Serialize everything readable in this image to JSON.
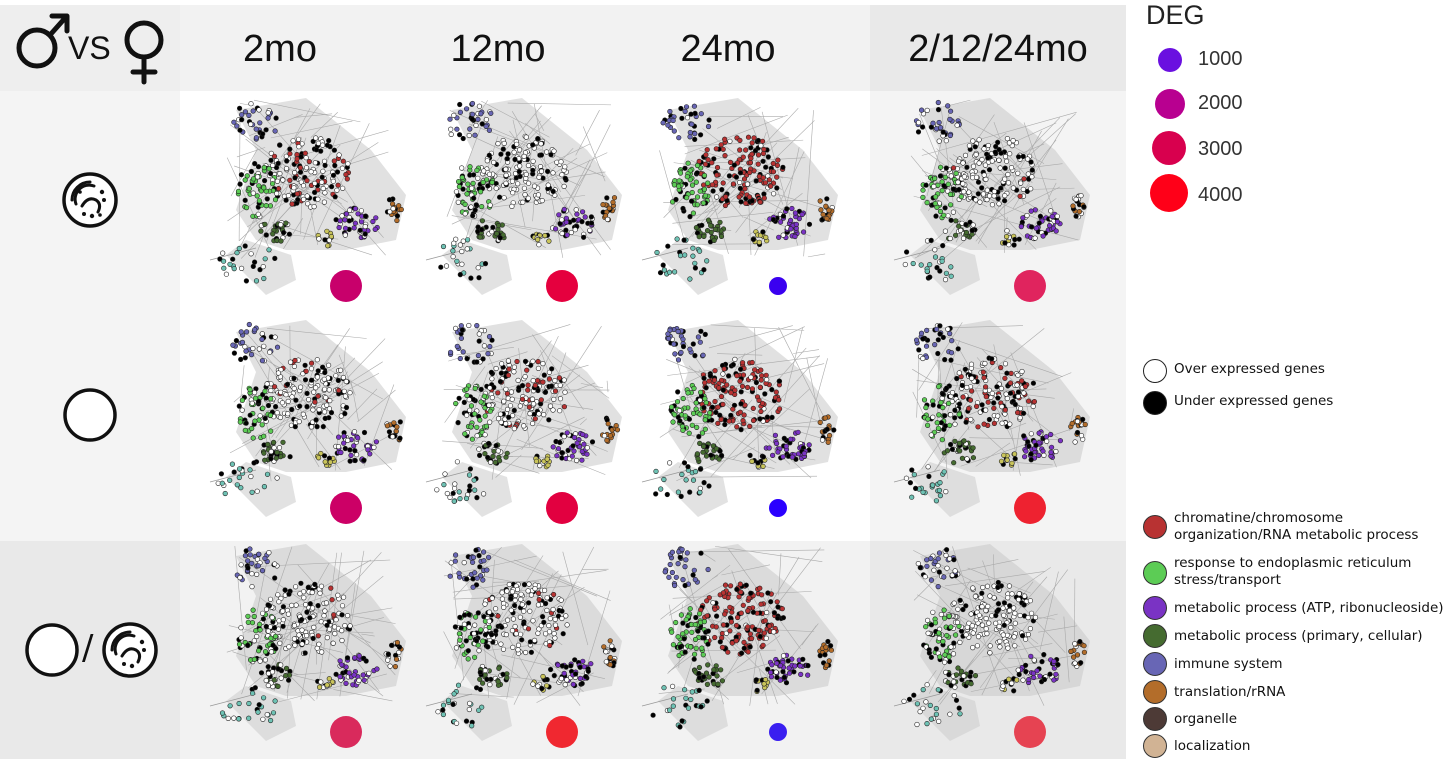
{
  "comparison": {
    "male_symbol": "♂",
    "vs": "VS",
    "female_symbol": "♀"
  },
  "columns": [
    {
      "label": "2mo"
    },
    {
      "label": "12mo"
    },
    {
      "label": "24mo"
    },
    {
      "label": "2/12/24mo"
    }
  ],
  "rows": [
    {
      "icon": "bacteria-dish-icon"
    },
    {
      "icon": "empty-dish-icon"
    },
    {
      "icon": "empty-dish-over-bacteria-dish-icon",
      "separator": "/"
    }
  ],
  "cells": [
    {
      "row": 0,
      "col": 0,
      "deg_color": "#c8006b",
      "white_fraction": 0.35
    },
    {
      "row": 0,
      "col": 1,
      "deg_color": "#e5003e",
      "white_fraction": 0.55
    },
    {
      "row": 0,
      "col": 2,
      "deg_color": "#3a00f0",
      "white_fraction": 0.05
    },
    {
      "row": 0,
      "col": 3,
      "deg_color": "#e0245e",
      "white_fraction": 0.5
    },
    {
      "row": 1,
      "col": 0,
      "deg_color": "#cc0066",
      "white_fraction": 0.45
    },
    {
      "row": 1,
      "col": 1,
      "deg_color": "#e20040",
      "white_fraction": 0.4
    },
    {
      "row": 1,
      "col": 2,
      "deg_color": "#2a00ff",
      "white_fraction": 0.05
    },
    {
      "row": 1,
      "col": 3,
      "deg_color": "#ee2230",
      "white_fraction": 0.3
    },
    {
      "row": 2,
      "col": 0,
      "deg_color": "#d92a5c",
      "white_fraction": 0.5
    },
    {
      "row": 2,
      "col": 1,
      "deg_color": "#f02830",
      "white_fraction": 0.45
    },
    {
      "row": 2,
      "col": 2,
      "deg_color": "#3a1ff0",
      "white_fraction": 0.05
    },
    {
      "row": 2,
      "col": 3,
      "deg_color": "#e64352",
      "white_fraction": 0.55
    }
  ],
  "legend": {
    "deg_title": "DEG",
    "deg_sizes": [
      {
        "label": "1000",
        "color": "#6a10e0"
      },
      {
        "label": "2000",
        "color": "#b80090"
      },
      {
        "label": "3000",
        "color": "#d8004e"
      },
      {
        "label": "4000",
        "color": "#ff0018"
      }
    ],
    "expression": [
      {
        "label": "Over expressed genes",
        "color": "#ffffff"
      },
      {
        "label": "Under expressed genes",
        "color": "#000000"
      }
    ],
    "categories": [
      {
        "lines": [
          "chromatine/chromosome",
          "organization/RNA metabolic process"
        ],
        "color": "#b83232"
      },
      {
        "lines": [
          "response to endoplasmic reticulum",
          "stress/transport"
        ],
        "color": "#5ccc55"
      },
      {
        "lines": [
          "metabolic process (ATP, ribonucleoside)"
        ],
        "color": "#7a33c4"
      },
      {
        "lines": [
          "metabolic process (primary, cellular)"
        ],
        "color": "#456b30"
      },
      {
        "lines": [
          "immune system"
        ],
        "color": "#6866b5"
      },
      {
        "lines": [
          "translation/rRNA"
        ],
        "color": "#b36d2a"
      },
      {
        "lines": [
          "organelle"
        ],
        "color": "#4d3a36"
      },
      {
        "lines": [
          "localization"
        ],
        "color": "#d1b394"
      }
    ]
  }
}
